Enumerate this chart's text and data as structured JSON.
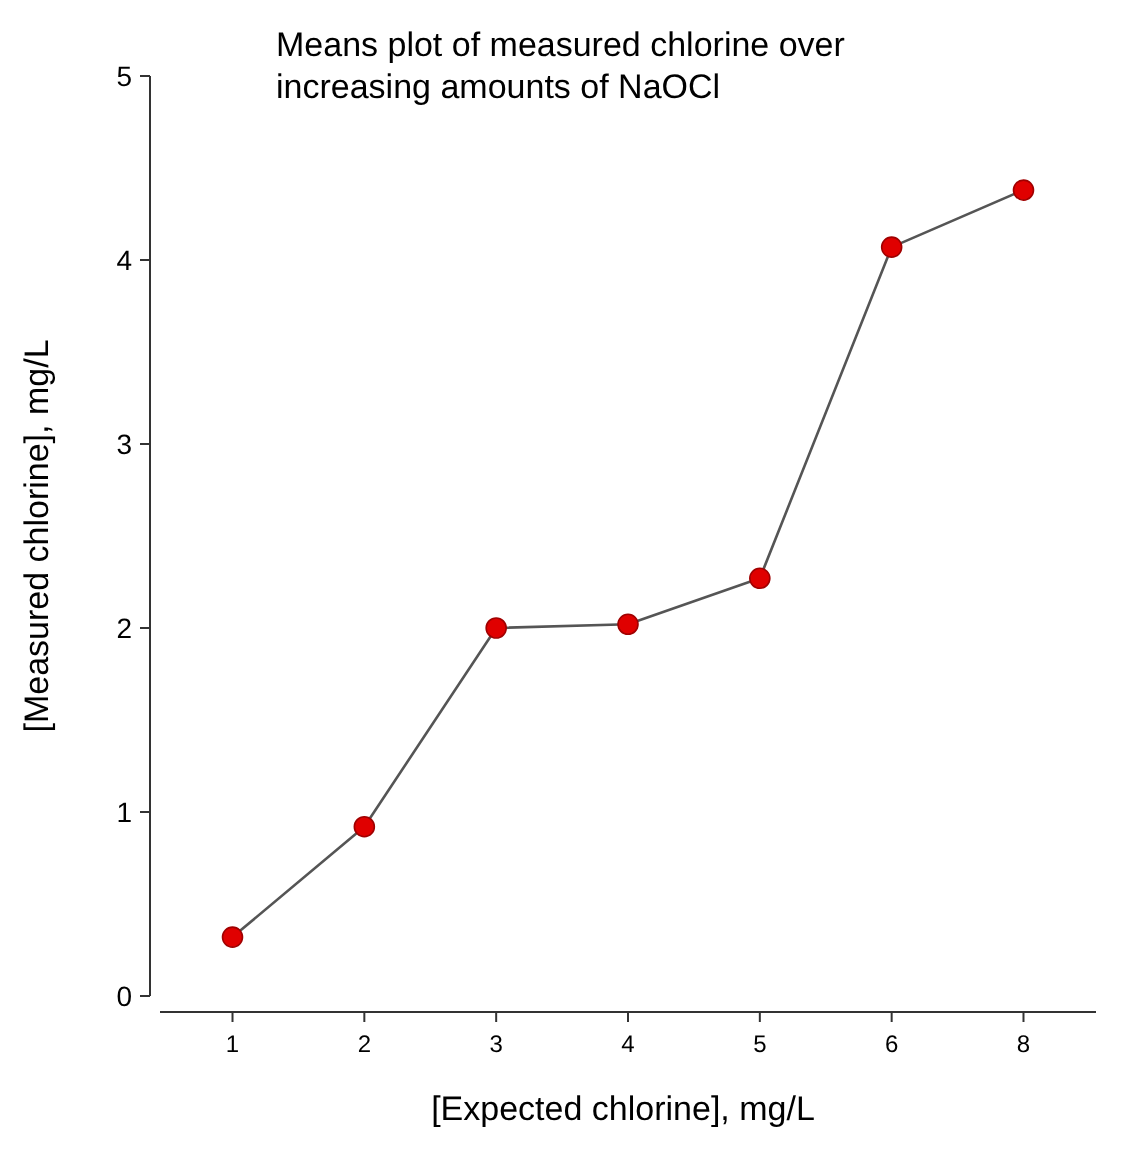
{
  "chart_data": {
    "type": "line",
    "title": "Means plot of measured chlorine over increasing amounts of NaOCl",
    "xlabel": "[Expected chlorine], mg/L",
    "ylabel": "[Measured chlorine], mg/L",
    "categories": [
      "1",
      "2",
      "3",
      "4",
      "5",
      "6",
      "8"
    ],
    "series": [
      {
        "color": "#e00000",
        "values": [
          0.32,
          0.92,
          2.0,
          2.02,
          2.27,
          4.07,
          4.38
        ]
      }
    ],
    "ylim": [
      0,
      5
    ],
    "yticks": [
      0,
      1,
      2,
      3,
      4,
      5
    ],
    "grid": false,
    "marker": "circle",
    "line_style": "solid"
  }
}
